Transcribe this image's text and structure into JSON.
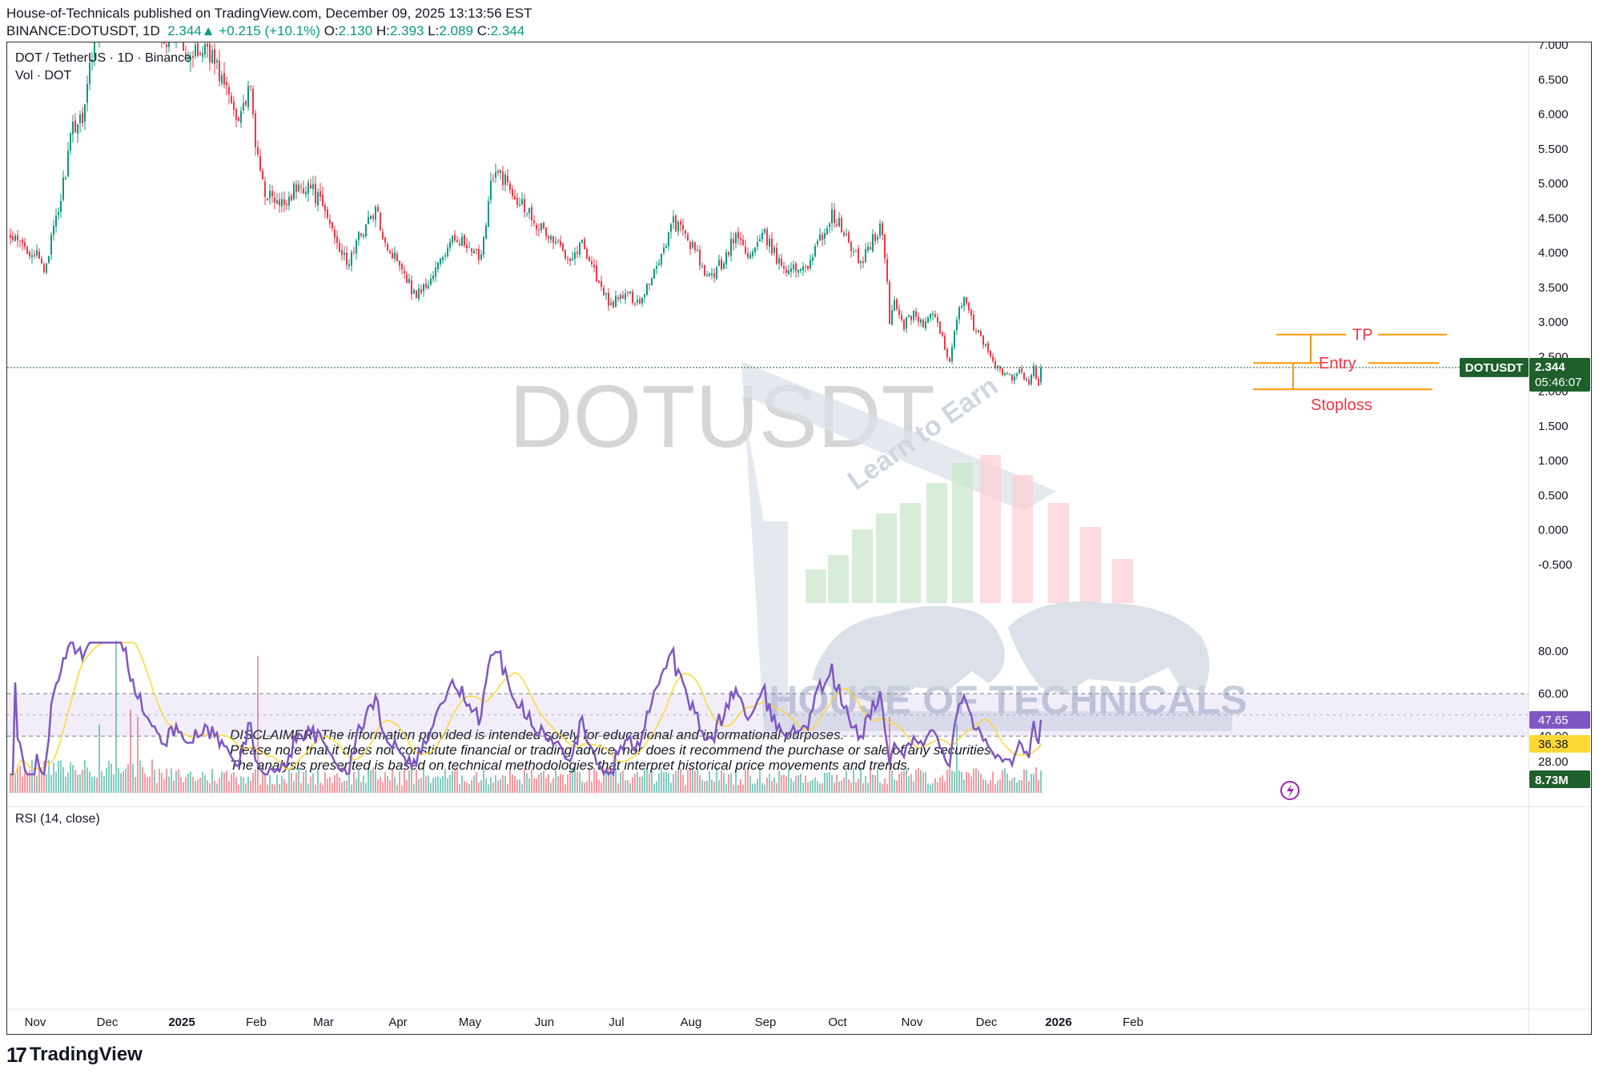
{
  "header": {
    "publish_line": "House-of-Technicals published on TradingView.com, December 09, 2025 13:13:56 EST",
    "symbol": "BINANCE:DOTUSDT, 1D",
    "last": "2.344",
    "change": "+0.215 (+10.1%)",
    "o_label": "O:",
    "o": "2.130",
    "h_label": "H:",
    "h": "2.393",
    "l_label": "L:",
    "l": "2.089",
    "c_label": "C:",
    "c": "2.344"
  },
  "pane_labels": {
    "main": "DOT / TetherUS · 1D · Binance",
    "vol": "Vol · DOT",
    "rsi": "RSI (14, close)"
  },
  "watermark": {
    "symbol": "DOTUSDT",
    "brand": "HOUSE OF TECHNICALS",
    "tagline": "Learn to Earn"
  },
  "annotations": {
    "tp": "TP",
    "entry": "Entry",
    "stoploss": "Stoploss",
    "tp_price": 2.82,
    "entry_price": 2.41,
    "stoploss_price": 2.03
  },
  "disclaimer": [
    "DISCLAIMER: The information provided is intended solely for educational and informational purposes.",
    "Please note that it does not constitute financial or trading advice, nor does it recommend the purchase or sale of any securities.",
    "The analysis presented is based on technical methodologies that interpret historical price movements and trends."
  ],
  "badges": {
    "symbol": "DOTUSDT",
    "price": "2.344",
    "countdown": "05:46:07",
    "volume": "8.73M",
    "rsi": "47.65",
    "rsi_ma": "36.38"
  },
  "colors": {
    "up": "#089981",
    "down": "#f23645",
    "rsi": "#7e57c2",
    "rsi_ma": "#fdd835",
    "rsi_band": "#7e57c2",
    "annotation": "#ff9800",
    "badge_green": "#1e5f2b",
    "watermark": "#c8ced8"
  },
  "footer": {
    "brand": "TradingView"
  },
  "chart_data": [
    {
      "type": "candlestick",
      "y_ticks": [
        "7.000",
        "6.500",
        "6.000",
        "5.500",
        "5.000",
        "4.500",
        "4.000",
        "3.500",
        "3.000",
        "2.500",
        "2.000",
        "1.500",
        "1.000",
        "0.500",
        "0.000",
        "-0.500"
      ],
      "ylim": [
        -0.5,
        7.0
      ],
      "x_ticks": [
        "Nov",
        "Dec",
        "2025",
        "Feb",
        "Mar",
        "Apr",
        "May",
        "Jun",
        "Jul",
        "Aug",
        "Sep",
        "Oct",
        "Nov",
        "Dec",
        "2026",
        "Feb"
      ],
      "anchors": [
        {
          "d": 0,
          "p": 4.2
        },
        {
          "d": 10,
          "p": 4.0
        },
        {
          "d": 14,
          "p": 3.75
        },
        {
          "d": 20,
          "p": 4.6
        },
        {
          "d": 26,
          "p": 5.8
        },
        {
          "d": 30,
          "p": 6.0
        },
        {
          "d": 36,
          "p": 7.3
        },
        {
          "d": 42,
          "p": 8.5
        },
        {
          "d": 46,
          "p": 9.5
        },
        {
          "d": 52,
          "p": 8.6
        },
        {
          "d": 58,
          "p": 7.6
        },
        {
          "d": 64,
          "p": 7.1
        },
        {
          "d": 70,
          "p": 7.2
        },
        {
          "d": 76,
          "p": 6.8
        },
        {
          "d": 82,
          "p": 7.0
        },
        {
          "d": 88,
          "p": 6.5
        },
        {
          "d": 94,
          "p": 6.0
        },
        {
          "d": 100,
          "p": 6.3
        },
        {
          "d": 103,
          "p": 5.3
        },
        {
          "d": 106,
          "p": 4.9
        },
        {
          "d": 112,
          "p": 4.65
        },
        {
          "d": 118,
          "p": 4.9
        },
        {
          "d": 124,
          "p": 5.0
        },
        {
          "d": 130,
          "p": 4.65
        },
        {
          "d": 136,
          "p": 4.2
        },
        {
          "d": 140,
          "p": 3.8
        },
        {
          "d": 146,
          "p": 4.3
        },
        {
          "d": 152,
          "p": 4.6
        },
        {
          "d": 158,
          "p": 4.0
        },
        {
          "d": 162,
          "p": 3.9
        },
        {
          "d": 168,
          "p": 3.4
        },
        {
          "d": 174,
          "p": 3.55
        },
        {
          "d": 180,
          "p": 3.95
        },
        {
          "d": 186,
          "p": 4.25
        },
        {
          "d": 192,
          "p": 3.95
        },
        {
          "d": 196,
          "p": 4.0
        },
        {
          "d": 200,
          "p": 5.0
        },
        {
          "d": 204,
          "p": 5.15
        },
        {
          "d": 210,
          "p": 4.85
        },
        {
          "d": 216,
          "p": 4.6
        },
        {
          "d": 222,
          "p": 4.3
        },
        {
          "d": 228,
          "p": 4.1
        },
        {
          "d": 234,
          "p": 3.95
        },
        {
          "d": 238,
          "p": 4.15
        },
        {
          "d": 242,
          "p": 3.85
        },
        {
          "d": 246,
          "p": 3.45
        },
        {
          "d": 250,
          "p": 3.25
        },
        {
          "d": 256,
          "p": 3.4
        },
        {
          "d": 262,
          "p": 3.3
        },
        {
          "d": 266,
          "p": 3.6
        },
        {
          "d": 270,
          "p": 3.9
        },
        {
          "d": 276,
          "p": 4.45
        },
        {
          "d": 282,
          "p": 4.2
        },
        {
          "d": 286,
          "p": 3.95
        },
        {
          "d": 290,
          "p": 3.6
        },
        {
          "d": 296,
          "p": 3.85
        },
        {
          "d": 302,
          "p": 4.25
        },
        {
          "d": 308,
          "p": 3.95
        },
        {
          "d": 314,
          "p": 4.25
        },
        {
          "d": 320,
          "p": 3.85
        },
        {
          "d": 326,
          "p": 3.75
        },
        {
          "d": 332,
          "p": 3.85
        },
        {
          "d": 338,
          "p": 4.25
        },
        {
          "d": 342,
          "p": 4.55
        },
        {
          "d": 346,
          "p": 4.35
        },
        {
          "d": 350,
          "p": 4.05
        },
        {
          "d": 354,
          "p": 3.85
        },
        {
          "d": 358,
          "p": 4.15
        },
        {
          "d": 362,
          "p": 4.35
        },
        {
          "d": 364,
          "p": 4.0
        },
        {
          "d": 366,
          "p": 3.0
        },
        {
          "d": 368,
          "p": 3.3
        },
        {
          "d": 372,
          "p": 2.95
        },
        {
          "d": 376,
          "p": 3.15
        },
        {
          "d": 380,
          "p": 2.95
        },
        {
          "d": 384,
          "p": 3.1
        },
        {
          "d": 388,
          "p": 2.75
        },
        {
          "d": 391,
          "p": 2.45
        },
        {
          "d": 394,
          "p": 3.1
        },
        {
          "d": 397,
          "p": 3.3
        },
        {
          "d": 401,
          "p": 2.95
        },
        {
          "d": 405,
          "p": 2.7
        },
        {
          "d": 409,
          "p": 2.45
        },
        {
          "d": 413,
          "p": 2.25
        },
        {
          "d": 417,
          "p": 2.2
        },
        {
          "d": 421,
          "p": 2.3
        },
        {
          "d": 424,
          "p": 2.05
        },
        {
          "d": 426,
          "p": 2.35
        },
        {
          "d": 428,
          "p": 2.1
        },
        {
          "d": 429,
          "p": 2.13
        }
      ],
      "last": {
        "open": 2.13,
        "high": 2.393,
        "low": 2.089,
        "close": 2.344
      }
    },
    {
      "type": "bar",
      "name": "Vol · DOT",
      "last_volume": 8.73,
      "spikes": [
        {
          "d": 37,
          "v": 0.45
        },
        {
          "d": 44,
          "v": 1.0
        },
        {
          "d": 50,
          "v": 0.55
        },
        {
          "d": 53,
          "v": 0.5
        },
        {
          "d": 103,
          "v": 0.9
        },
        {
          "d": 366,
          "v": 0.5
        },
        {
          "d": 394,
          "v": 0.45
        }
      ]
    },
    {
      "type": "line",
      "name": "RSI (14, close)",
      "y_ticks": [
        "80.00",
        "60.00",
        "40.00",
        "28.00"
      ],
      "ylim": [
        20,
        85
      ],
      "band": [
        40,
        60
      ],
      "midline": 50,
      "last_rsi": 47.65,
      "last_ma": 36.38
    }
  ]
}
